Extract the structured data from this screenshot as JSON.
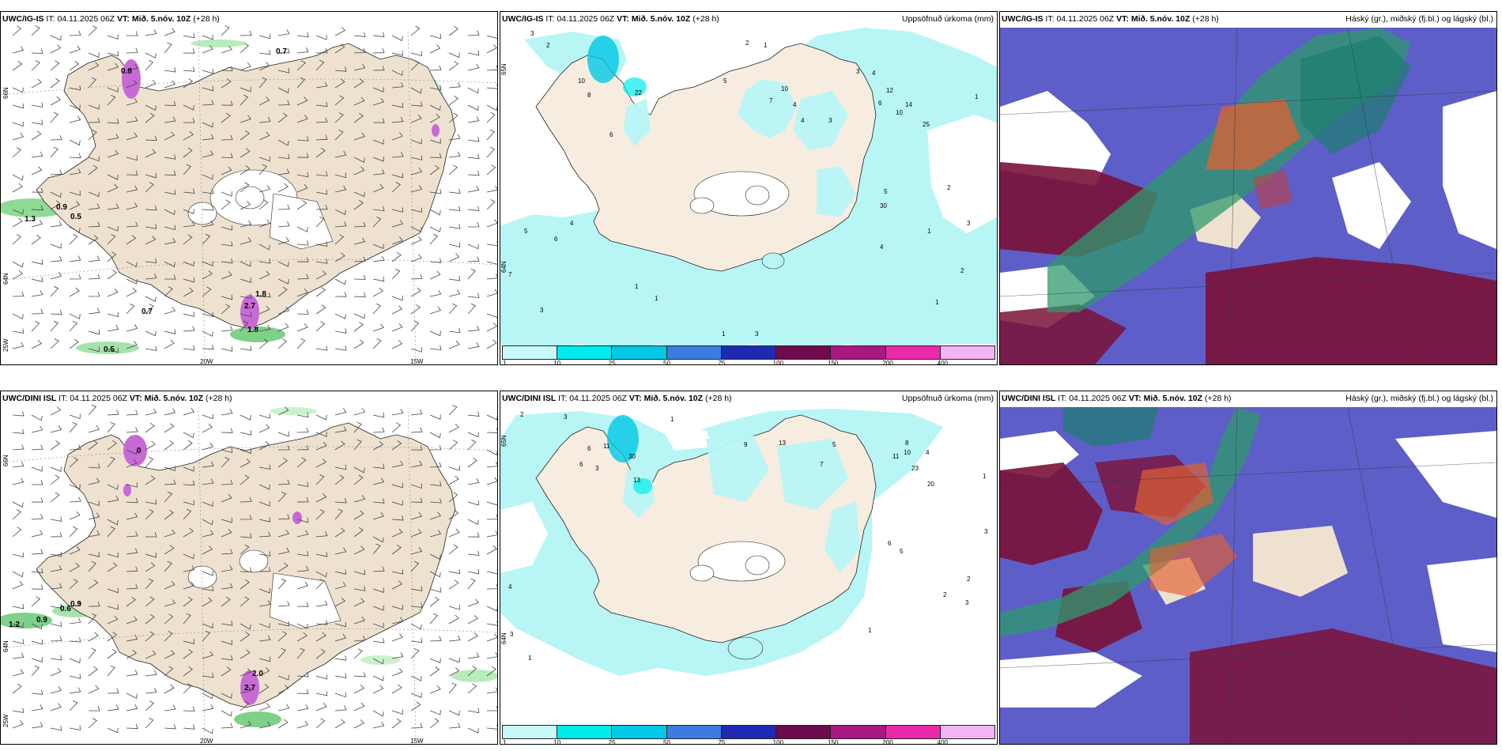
{
  "rows": [
    {
      "panels": [
        {
          "model": "UWC/IG-IS",
          "it_label": "IT:",
          "it_value": "04.11.2025 06Z",
          "vt_label": "VT:",
          "vt_value": "Mið. 5.nóv. 10Z",
          "lead": "(+28 h)",
          "right_title": ""
        },
        {
          "model": "UWC/IG-IS",
          "it_label": "IT:",
          "it_value": "04.11.2025 06Z",
          "vt_label": "VT:",
          "vt_value": "Mið. 5.nóv. 10Z",
          "lead": "(+28 h)",
          "right_title": "Uppsöfnuð úrkoma (mm)"
        },
        {
          "model": "UWC/IG-IS",
          "it_label": "IT:",
          "it_value": "04.11.2025 06Z",
          "vt_label": "VT:",
          "vt_value": "Mið. 5.nóv. 10Z",
          "lead": "(+28 h)",
          "right_title": "Háský (gr.), miðský (fj.bl.) og lágský (bl.)"
        }
      ]
    },
    {
      "panels": [
        {
          "model": "UWC/DINI ISL",
          "it_label": "IT:",
          "it_value": "04.11.2025 06Z",
          "vt_label": "VT:",
          "vt_value": "Mið. 5.nóv. 10Z",
          "lead": "(+28 h)",
          "right_title": ""
        },
        {
          "model": "UWC/DINI ISL",
          "it_label": "IT:",
          "it_value": "04.11.2025 06Z",
          "vt_label": "VT:",
          "vt_value": "Mið. 5.nóv. 10Z",
          "lead": "(+28 h)",
          "right_title": "Uppsöfnuð úrkoma (mm)"
        },
        {
          "model": "UWC/DINI ISL",
          "it_label": "IT:",
          "it_value": "04.11.2025 06Z",
          "vt_label": "VT:",
          "vt_value": "Mið. 5.nóv. 10Z",
          "lead": "(+28 h)",
          "right_title": "Háský (gr.), miðský (fj.bl.) og lágský (bl.)"
        }
      ]
    }
  ],
  "graticule": {
    "lat_labels": [
      "66N",
      "64N",
      "25W"
    ],
    "mid_lat_labels": [
      "65N",
      "64N"
    ],
    "lon_labels": [
      "20W",
      "15W"
    ]
  },
  "wind_panel_values_top": [
    "0.7",
    "0.8",
    "1.3",
    "0.9",
    "0.5",
    "0.7",
    "0.5",
    "1.8",
    "2.7",
    "1.8"
  ],
  "wind_panel_values_bottom": [
    "0",
    "1.2",
    "0.9",
    "0.6",
    "0.9",
    "2.0",
    "2.7"
  ],
  "precip_values_top": [
    "3",
    "2",
    "2",
    "1",
    "10",
    "22",
    "8",
    "6",
    "5",
    "4",
    "3",
    "7",
    "10",
    "4",
    "3",
    "4",
    "6",
    "12",
    "10",
    "14",
    "25",
    "1",
    "30",
    "2",
    "5",
    "1",
    "4",
    "3",
    "2",
    "1",
    "7",
    "5",
    "6",
    "4",
    "3",
    "1",
    "1",
    "1",
    "3"
  ],
  "precip_values_bottom": [
    "2",
    "3",
    "1",
    "6",
    "11",
    "30",
    "6",
    "3",
    "13",
    "9",
    "13",
    "5",
    "7",
    "8",
    "11",
    "10",
    "23",
    "20",
    "4",
    "3",
    "2",
    "1",
    "5",
    "6",
    "3",
    "2",
    "1",
    "4",
    "1",
    "3"
  ],
  "precip_scale": {
    "ticks": [
      "1",
      "10",
      "25",
      "50",
      "75",
      "100",
      "150",
      "200",
      "400"
    ],
    "colors": [
      "#c8fafa",
      "#00ecec",
      "#00c8e6",
      "#3c7ce0",
      "#1e2ab4",
      "#6e0a4e",
      "#a81882",
      "#ea2aa8",
      "#f2b4f2"
    ]
  },
  "colors": {
    "land": "#efe1cf",
    "precip_light": "#b8f6f6",
    "cloud_low": "#5e5ec8",
    "cloud_mid": "#7a1238",
    "cloud_high": "#2f9a6e",
    "snow_magenta": "#c86ad6",
    "rain_green": "#9ee6a6"
  }
}
